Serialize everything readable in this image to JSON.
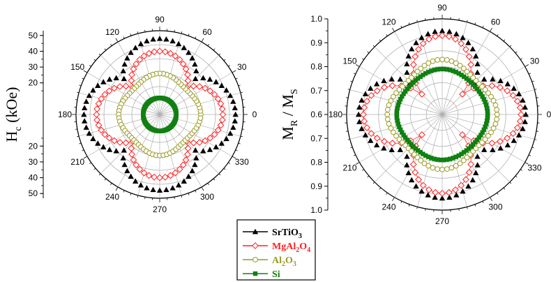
{
  "colors": {
    "SrTiO3": "#000000",
    "MgAl2O4": "#ff2020",
    "Al2O3": "#9a9a22",
    "Si": "#108010",
    "grid": "#b0b0b0"
  },
  "chart_data": [
    {
      "type": "polar-scatter",
      "title": "",
      "ylabel": "Hc (kOe)",
      "ylabel_main": "H",
      "ylabel_sub": "c",
      "ylabel_unit": " (kOe)",
      "radial_axis": "inverted: 50 at center? no — 0 at center, radius increases outward; labels mirrored 20,30,40,50 above and below",
      "radial_ticks_top": [
        "50",
        "40",
        "30",
        "20"
      ],
      "radial_ticks_bottom": [
        "20",
        "30",
        "40",
        "50"
      ],
      "rlim": [
        0,
        53
      ],
      "angle_ticks": [
        "0",
        "30",
        "60",
        "90",
        "120",
        "150",
        "180",
        "210",
        "240",
        "270",
        "300",
        "330"
      ],
      "series": [
        {
          "name": "SrTiO3",
          "marker": "triangle",
          "base": 40,
          "amp": 8,
          "mode": "cos4abs"
        },
        {
          "name": "MgAl2O4",
          "marker": "diamond",
          "base": 32,
          "amp": 8,
          "mode": "cos4abs"
        },
        {
          "name": "Al2O3",
          "marker": "circle",
          "base": 24.5,
          "amp": 1.5,
          "mode": "cos4"
        },
        {
          "name": "Si",
          "marker": "square",
          "base": 10.5,
          "amp": 0,
          "mode": "flat"
        }
      ],
      "series_note": "SrTiO3: ~48 at 0/90/180/270, ~33 at 45/135/225/315. MgAl2O4: ~40 at axes, ~25 at diagonals. Al2O3: ~25 at axes, ~23 at diagonals. Si: ~10.5 everywhere."
    },
    {
      "type": "polar-scatter",
      "title": "",
      "ylabel": "MR / MS",
      "ylabel_main": "M",
      "ylabel_sub1": "R",
      "ylabel_mid": " / M",
      "ylabel_sub2": "S",
      "radial_ticks_top": [
        "1.0",
        "0.9",
        "0.8",
        "0.7",
        "0.6"
      ],
      "radial_ticks_bottom": [
        "0.7",
        "0.8",
        "0.9",
        "1.0"
      ],
      "rlim": [
        0.6,
        1.0
      ],
      "angle_ticks": [
        "0",
        "30",
        "60",
        "90",
        "120",
        "150",
        "180",
        "210",
        "240",
        "270",
        "300",
        "330"
      ],
      "series": [
        {
          "name": "SrTiO3",
          "marker": "triangle",
          "base": 0.87,
          "amp": 0.08,
          "mode": "cos4abs"
        },
        {
          "name": "MgAl2O4",
          "marker": "diamond",
          "base": 0.825,
          "amp": 0.105,
          "mode": "cos4abs"
        },
        {
          "name": "Al2O3",
          "marker": "circle",
          "base": 0.815,
          "amp": 0.015,
          "mode": "cos4"
        },
        {
          "name": "Si",
          "marker": "square",
          "base": 0.785,
          "amp": 0.005,
          "mode": "cos4"
        }
      ]
    }
  ],
  "legend": {
    "items": [
      {
        "key": "SrTiO3",
        "main": "SrTiO",
        "sub": "3",
        "tail": ""
      },
      {
        "key": "MgAl2O4",
        "main": "MgAl",
        "sub": "2",
        "mid": "O",
        "sub2": "4"
      },
      {
        "key": "Al2O3",
        "main": "Al",
        "sub": "2",
        "mid": "O",
        "sub2": "3"
      },
      {
        "key": "Si",
        "main": "Si",
        "sub": "",
        "mid": "",
        "sub2": ""
      }
    ]
  }
}
